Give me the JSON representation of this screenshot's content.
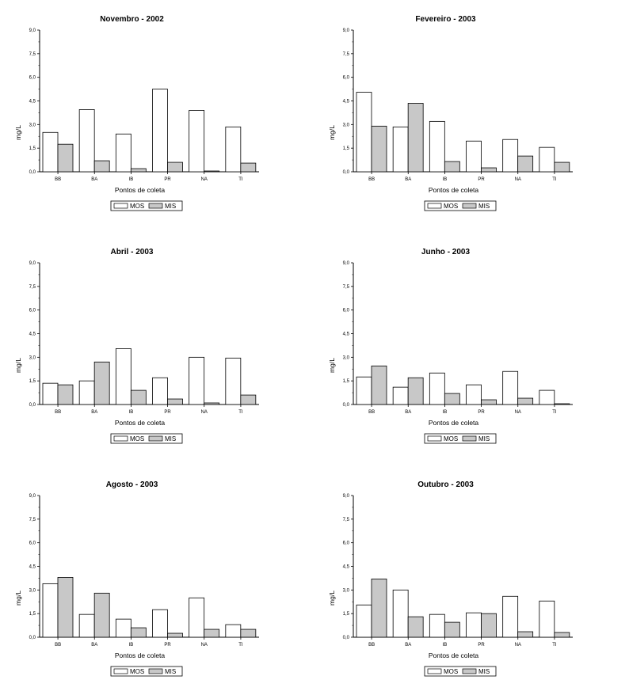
{
  "legend_labels": [
    "MOS",
    "MIS"
  ],
  "colors": {
    "MOS": "#ffffff",
    "MIS": "#c8c8c8",
    "stroke": "#000000"
  },
  "chart_data": [
    {
      "type": "bar",
      "title": "Novembro - 2002",
      "xlabel": "Pontos de coleta",
      "ylabel": "mg/L",
      "ylim": [
        0,
        9
      ],
      "yticks": [
        "0,0",
        "1,5",
        "3,0",
        "4,5",
        "6,0",
        "7,5",
        "9,0"
      ],
      "categories": [
        "BB",
        "BA",
        "IB",
        "PR",
        "NA",
        "TI"
      ],
      "series": [
        {
          "name": "MOS",
          "values": [
            2.5,
            3.95,
            2.4,
            5.25,
            3.9,
            2.85
          ]
        },
        {
          "name": "MIS",
          "values": [
            1.75,
            0.7,
            0.2,
            0.6,
            0.05,
            0.55
          ]
        }
      ],
      "legend": "bottom"
    },
    {
      "type": "bar",
      "title": "Fevereiro - 2003",
      "xlabel": "Pontos de coleta",
      "ylabel": "mg/L",
      "ylim": [
        0,
        9
      ],
      "yticks": [
        "0,0",
        "1,5",
        "3,0",
        "4,5",
        "6,0",
        "7,5",
        "9,0"
      ],
      "categories": [
        "BB",
        "BA",
        "IB",
        "PR",
        "NA",
        "TI"
      ],
      "series": [
        {
          "name": "MOS",
          "values": [
            5.05,
            2.85,
            3.2,
            1.95,
            2.05,
            1.55
          ]
        },
        {
          "name": "MIS",
          "values": [
            2.9,
            4.35,
            0.65,
            0.25,
            1.0,
            0.6
          ]
        }
      ],
      "legend": "bottom"
    },
    {
      "type": "bar",
      "title": "Abril - 2003",
      "xlabel": "Pontos de coleta",
      "ylabel": "mg/L",
      "ylim": [
        0,
        9
      ],
      "yticks": [
        "0,0",
        "1,5",
        "3,0",
        "4,5",
        "6,0",
        "7,5",
        "9,0"
      ],
      "categories": [
        "BB",
        "BA",
        "IB",
        "PR",
        "NA",
        "TI"
      ],
      "series": [
        {
          "name": "MOS",
          "values": [
            1.35,
            1.5,
            3.55,
            1.7,
            3.0,
            2.95
          ]
        },
        {
          "name": "MIS",
          "values": [
            1.25,
            2.7,
            0.9,
            0.35,
            0.1,
            0.6
          ]
        }
      ],
      "legend": "bottom"
    },
    {
      "type": "bar",
      "title": "Junho - 2003",
      "xlabel": "Pontos de coleta",
      "ylabel": "mg/L",
      "ylim": [
        0,
        9
      ],
      "yticks": [
        "0,0",
        "1,5",
        "3,0",
        "4,5",
        "6,0",
        "7,5",
        "9,0"
      ],
      "categories": [
        "BB",
        "BA",
        "IB",
        "PR",
        "NA",
        "TI"
      ],
      "series": [
        {
          "name": "MOS",
          "values": [
            1.75,
            1.1,
            2.0,
            1.25,
            2.1,
            0.9
          ]
        },
        {
          "name": "MIS",
          "values": [
            2.45,
            1.7,
            0.7,
            0.3,
            0.4,
            0.05
          ]
        }
      ],
      "legend": "bottom"
    },
    {
      "type": "bar",
      "title": "Agosto - 2003",
      "xlabel": "Pontos de coleta",
      "ylabel": "mg/L",
      "ylim": [
        0,
        9
      ],
      "yticks": [
        "0,0",
        "1,5",
        "3,0",
        "4,5",
        "6,0",
        "7,5",
        "9,0"
      ],
      "categories": [
        "BB",
        "BA",
        "IB",
        "PR",
        "NA",
        "TI"
      ],
      "series": [
        {
          "name": "MOS",
          "values": [
            3.4,
            1.45,
            1.15,
            1.75,
            2.5,
            0.8
          ]
        },
        {
          "name": "MIS",
          "values": [
            3.8,
            2.8,
            0.6,
            0.25,
            0.5,
            0.5
          ]
        }
      ],
      "legend": "bottom"
    },
    {
      "type": "bar",
      "title": "Outubro - 2003",
      "xlabel": "Pontos de coleta",
      "ylabel": "mg/L",
      "ylim": [
        0,
        9
      ],
      "yticks": [
        "0,0",
        "1,5",
        "3,0",
        "4,5",
        "6,0",
        "7,5",
        "9,0"
      ],
      "categories": [
        "BB",
        "BA",
        "IB",
        "PR",
        "NA",
        "TI"
      ],
      "series": [
        {
          "name": "MOS",
          "values": [
            2.05,
            3.0,
            1.45,
            1.55,
            2.6,
            2.3
          ]
        },
        {
          "name": "MIS",
          "values": [
            3.7,
            1.3,
            0.95,
            1.5,
            0.35,
            0.3
          ]
        }
      ],
      "legend": "bottom"
    }
  ]
}
